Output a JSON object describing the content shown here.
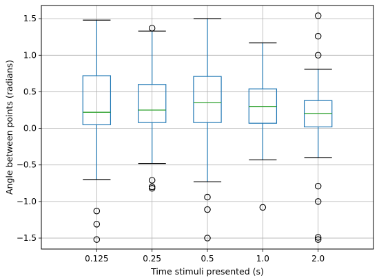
{
  "chart_data": {
    "type": "box",
    "xlabel": "Time stimuli presented (s)",
    "ylabel": "Angle between points (radians)",
    "ylim": [
      -1.65,
      1.68
    ],
    "grid": true,
    "categories": [
      "0.125",
      "0.25",
      "0.5",
      "1.0",
      "2.0"
    ],
    "y_ticks": [
      -1.5,
      -1.0,
      -0.5,
      0.0,
      0.5,
      1.0,
      1.5
    ],
    "y_tick_labels": [
      "−1.5",
      "−1.0",
      "−0.5",
      "0.0",
      "0.5",
      "1.0",
      "1.5"
    ],
    "boxes": [
      {
        "category": "0.125",
        "whisker_low": -0.7,
        "q1": 0.05,
        "median": 0.22,
        "q3": 0.72,
        "whisker_high": 1.48,
        "outliers": [
          -1.13,
          -1.31,
          -1.52
        ]
      },
      {
        "category": "0.25",
        "whisker_low": -0.48,
        "q1": 0.08,
        "median": 0.25,
        "q3": 0.6,
        "whisker_high": 1.33,
        "outliers": [
          1.37,
          -0.71,
          -0.8,
          -0.82
        ]
      },
      {
        "category": "0.5",
        "whisker_low": -0.73,
        "q1": 0.08,
        "median": 0.35,
        "q3": 0.71,
        "whisker_high": 1.5,
        "outliers": [
          -0.94,
          -1.11,
          -1.5
        ]
      },
      {
        "category": "1.0",
        "whisker_low": -0.43,
        "q1": 0.07,
        "median": 0.3,
        "q3": 0.54,
        "whisker_high": 1.17,
        "outliers": [
          -1.08
        ]
      },
      {
        "category": "2.0",
        "whisker_low": -0.4,
        "q1": 0.02,
        "median": 0.2,
        "q3": 0.38,
        "whisker_high": 0.81,
        "outliers": [
          1.54,
          1.26,
          1.0,
          -0.79,
          -1.0,
          -1.49,
          -1.52
        ]
      }
    ],
    "colors": {
      "box": "#1f77b4",
      "median": "#2ca02c",
      "whisker_cap": "#000000",
      "outlier": "#000000",
      "grid": "#b0b0b0",
      "axes": "#000000"
    }
  }
}
